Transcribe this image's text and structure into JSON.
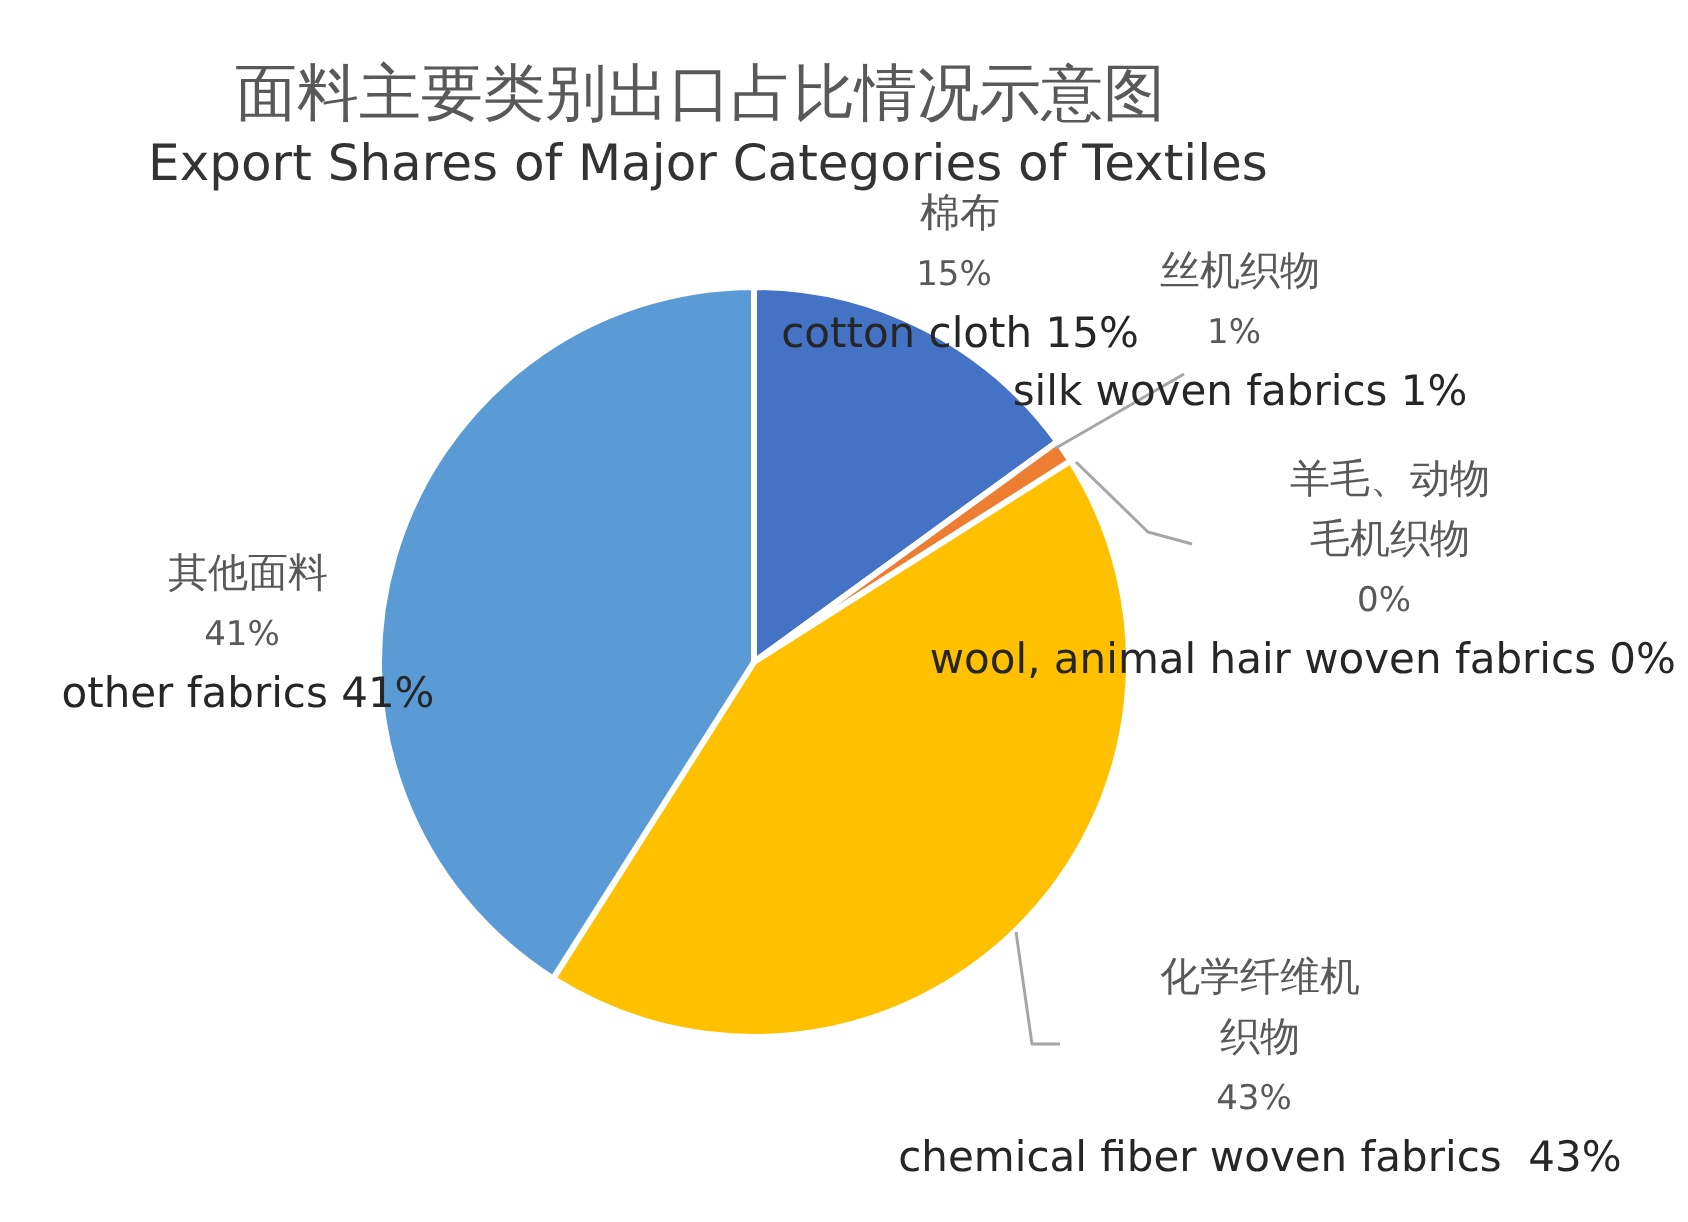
{
  "chart_data": {
    "type": "pie",
    "title": "面料主要类别出口占比情况示意图",
    "subtitle": "Export Shares of Major Categories of Textiles",
    "categories": [
      "棉布",
      "丝机织物",
      "羊毛、动物毛机织物",
      "化学纤维机织物",
      "其他面料"
    ],
    "values": [
      15,
      1,
      0,
      43,
      41
    ],
    "colors": [
      "#4472c4",
      "#ed7d31",
      "#a5a5a5",
      "#ffc000",
      "#5b9bd5"
    ],
    "value_labels": [
      "15%",
      "1%",
      "0%",
      "43%",
      "41%"
    ],
    "legend": false,
    "annotations": [
      {
        "text": "cotton cloth 15%",
        "x": "棉布"
      },
      {
        "text": "silk woven fabrics 1%",
        "x": "丝机织物"
      },
      {
        "text": "wool, animal hair woven fabrics 0%",
        "x": "羊毛、动物毛机织物"
      },
      {
        "text": "chemical fiber woven fabrics  43%",
        "x": "化学纤维机织物"
      },
      {
        "text": "other fabrics 41%",
        "x": "其他面料"
      }
    ]
  }
}
